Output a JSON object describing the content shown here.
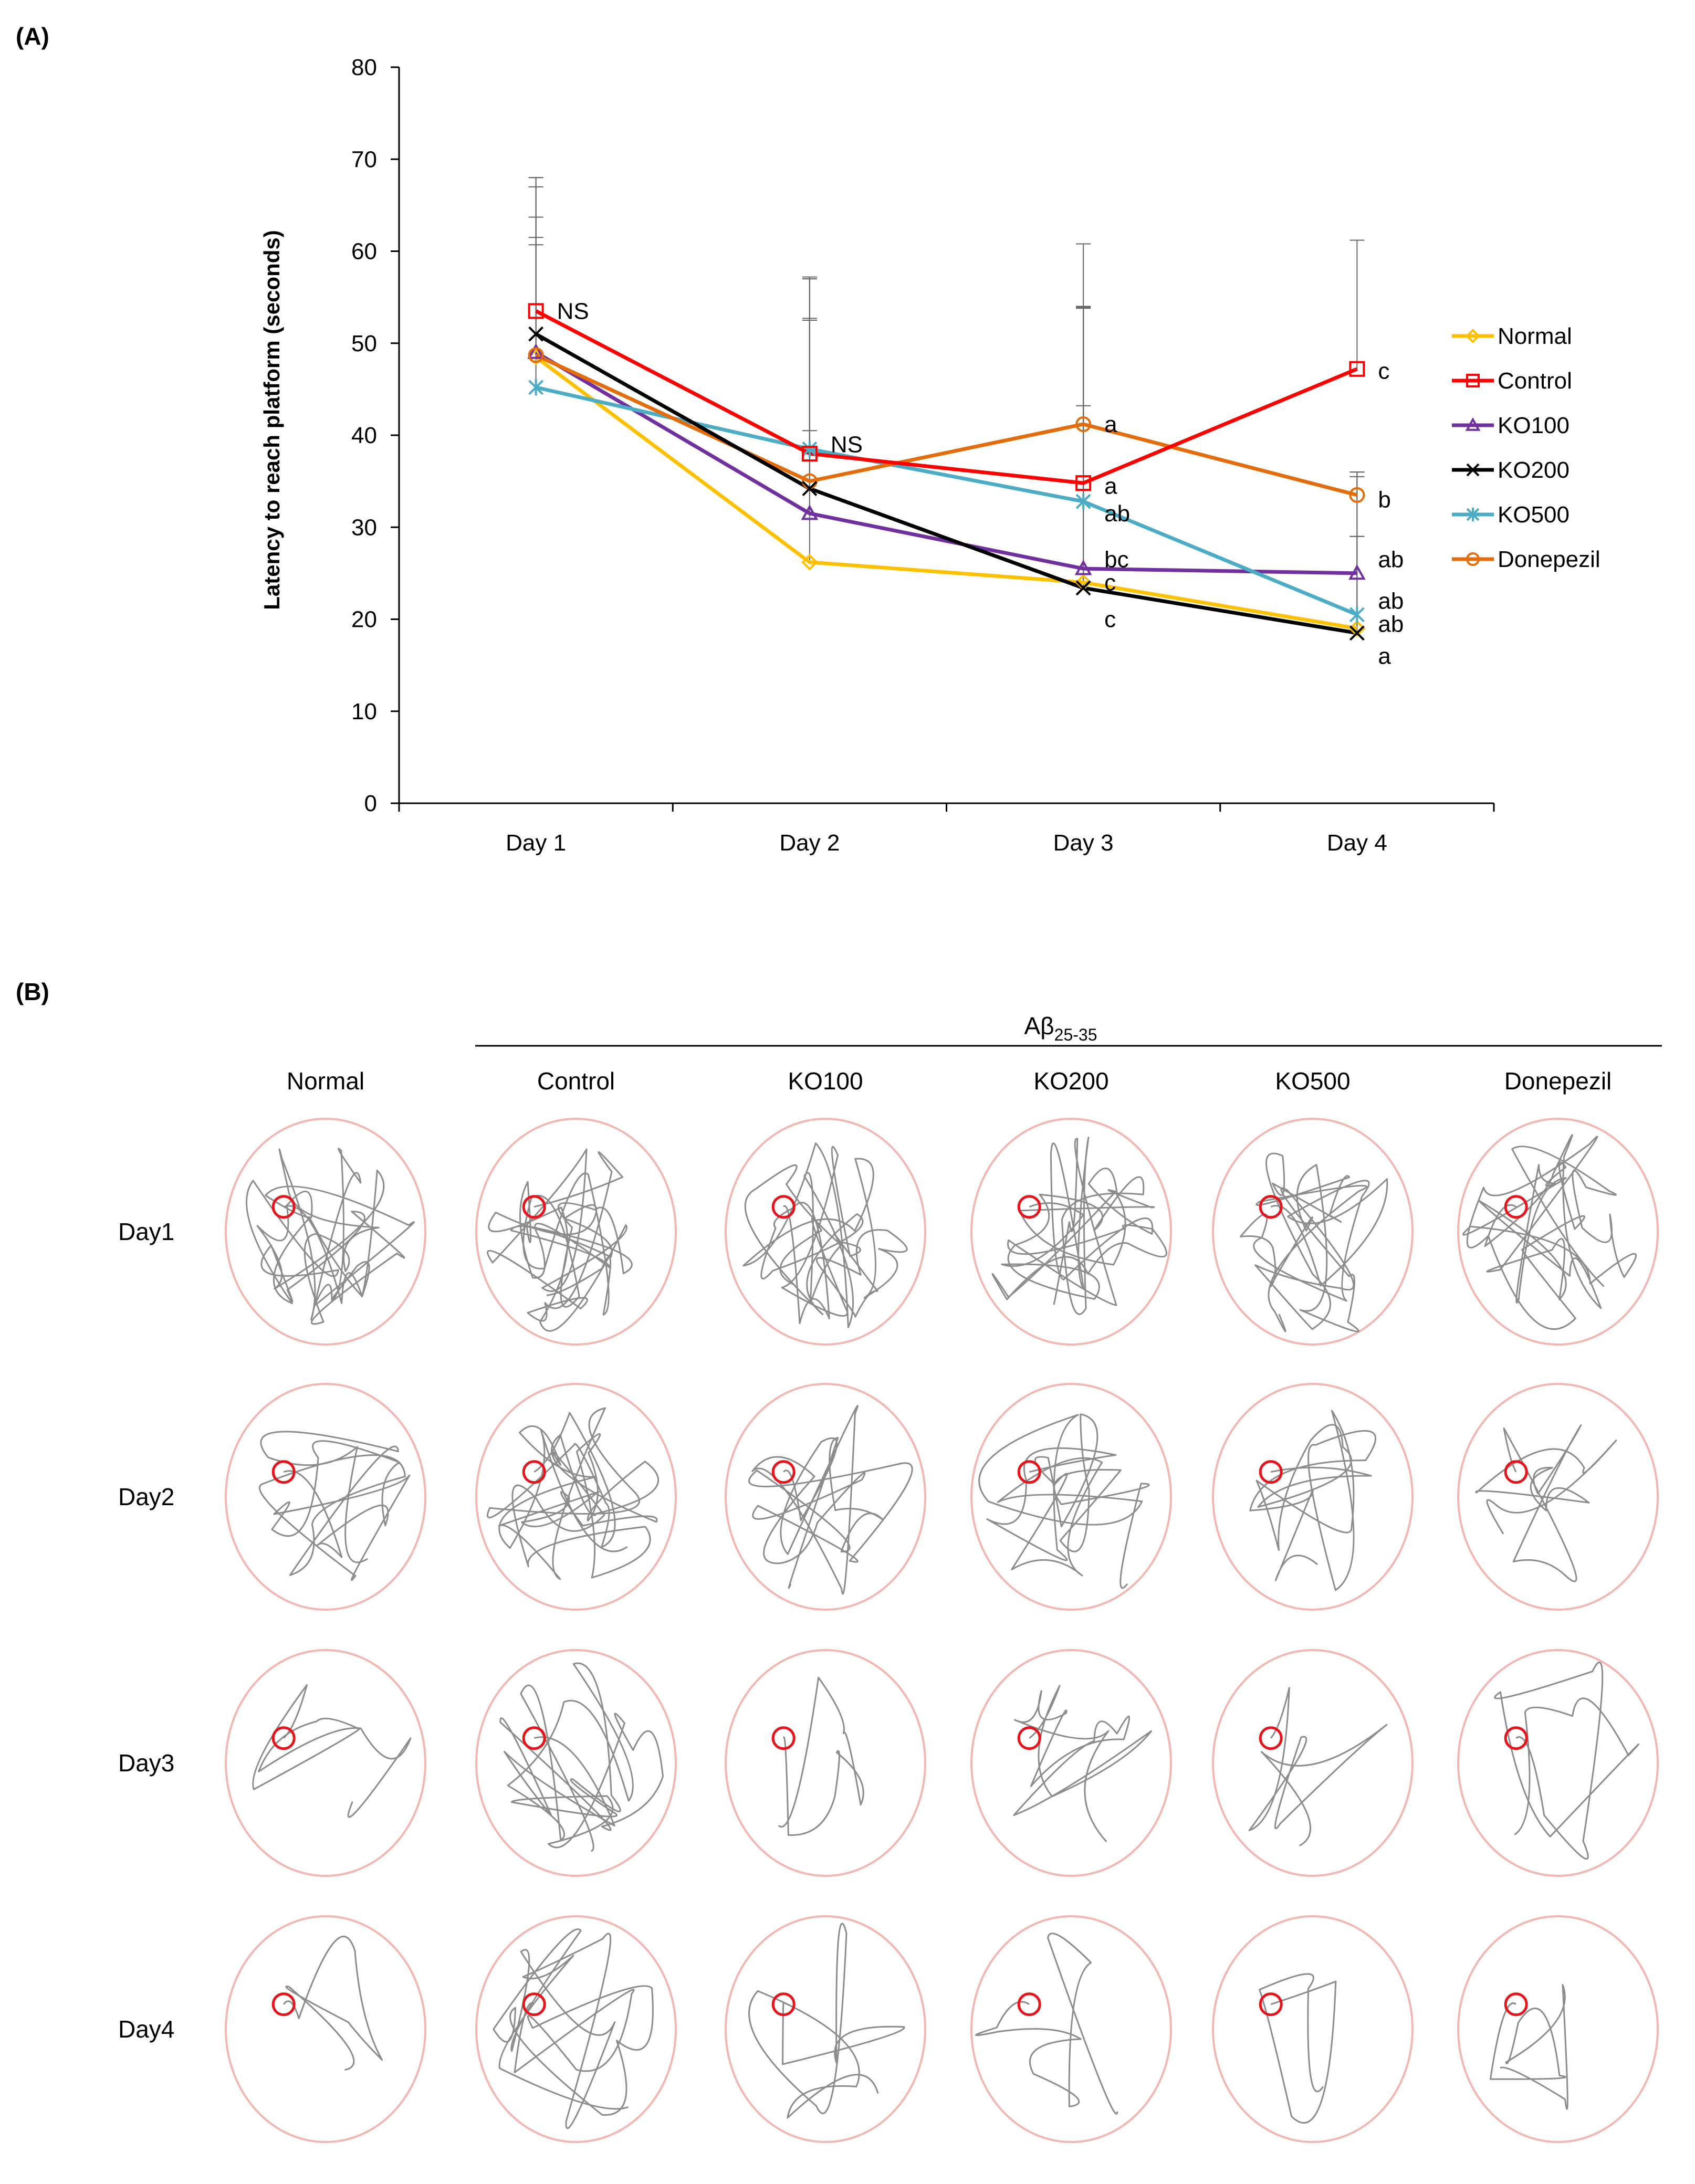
{
  "panels": {
    "a_label": "(A)",
    "b_label": "(B)"
  },
  "chart_data": {
    "type": "line",
    "categories": [
      "Day 1",
      "Day 2",
      "Day 3",
      "Day 4"
    ],
    "ylabel": "Latency to reach platform (seconds)",
    "xlabel": "",
    "ylim": [
      0,
      80
    ],
    "yticks": [
      0,
      10,
      20,
      30,
      40,
      50,
      60,
      70,
      80
    ],
    "legend_position": "right",
    "series": [
      {
        "name": "Normal",
        "color": "#FFC000",
        "marker": "diamond",
        "values": [
          48.5,
          26.2,
          24.0,
          19.0
        ],
        "err": [
          13.0,
          26.5,
          30.0,
          10.0
        ]
      },
      {
        "name": "Control",
        "color": "#FF0000",
        "marker": "square",
        "values": [
          53.5,
          38.0,
          34.8,
          47.2
        ],
        "err": [
          14.5,
          19.0,
          26.0,
          14.0
        ]
      },
      {
        "name": "KO100",
        "color": "#7030A0",
        "marker": "triangle",
        "values": [
          49.0,
          31.5,
          25.5,
          25.0
        ],
        "err": [
          18.0,
          21.0,
          28.5,
          11.0
        ]
      },
      {
        "name": "KO200",
        "color": "#000000",
        "marker": "x",
        "values": [
          51.0,
          34.2,
          23.4,
          18.5
        ],
        "err": [
          17.0,
          23.0,
          30.5,
          17.5
        ]
      },
      {
        "name": "KO500",
        "color": "#4BACC6",
        "marker": "star",
        "values": [
          45.2,
          38.5,
          32.8,
          20.5
        ],
        "err": [
          18.5,
          18.5,
          21.0,
          8.5
        ]
      },
      {
        "name": "Donepezil",
        "color": "#E46C0A",
        "marker": "circle",
        "values": [
          48.7,
          35.0,
          41.2,
          33.5
        ],
        "err": [
          12.0,
          5.5,
          2.0,
          2.0
        ]
      }
    ],
    "other_series": {
      "name": "",
      "color": "#7F7F7F",
      "values": [
        45.2,
        38.5
      ]
    },
    "annotations": [
      {
        "text": "NS",
        "day": 0,
        "y": 53.5
      },
      {
        "text": "NS",
        "day": 1,
        "y": 39.0
      },
      {
        "text": "a",
        "day": 2,
        "y": 41.2
      },
      {
        "text": "a",
        "day": 2,
        "y": 34.5
      },
      {
        "text": "ab",
        "day": 2,
        "y": 31.5
      },
      {
        "text": "bc",
        "day": 2,
        "y": 26.5
      },
      {
        "text": "c",
        "day": 2,
        "y": 24.0
      },
      {
        "text": "c",
        "day": 2,
        "y": 20.0
      },
      {
        "text": "c",
        "day": 3,
        "y": 47.0
      },
      {
        "text": "b",
        "day": 3,
        "y": 33.0
      },
      {
        "text": "ab",
        "day": 3,
        "y": 26.5
      },
      {
        "text": "ab",
        "day": 3,
        "y": 22.0
      },
      {
        "text": "ab",
        "day": 3,
        "y": 19.5
      },
      {
        "text": "a",
        "day": 3,
        "y": 16.0
      }
    ]
  },
  "panel_b": {
    "group_label": "Aβ",
    "group_subscript": "25-35",
    "columns": [
      "Normal",
      "Control",
      "KO100",
      "KO200",
      "KO500",
      "Donepezil"
    ],
    "rows": [
      "Day1",
      "Day2",
      "Day3",
      "Day4"
    ],
    "pool_color": "#F4B6B0",
    "platform_color": "#E8141C",
    "path_color": "#8C8C8C"
  }
}
